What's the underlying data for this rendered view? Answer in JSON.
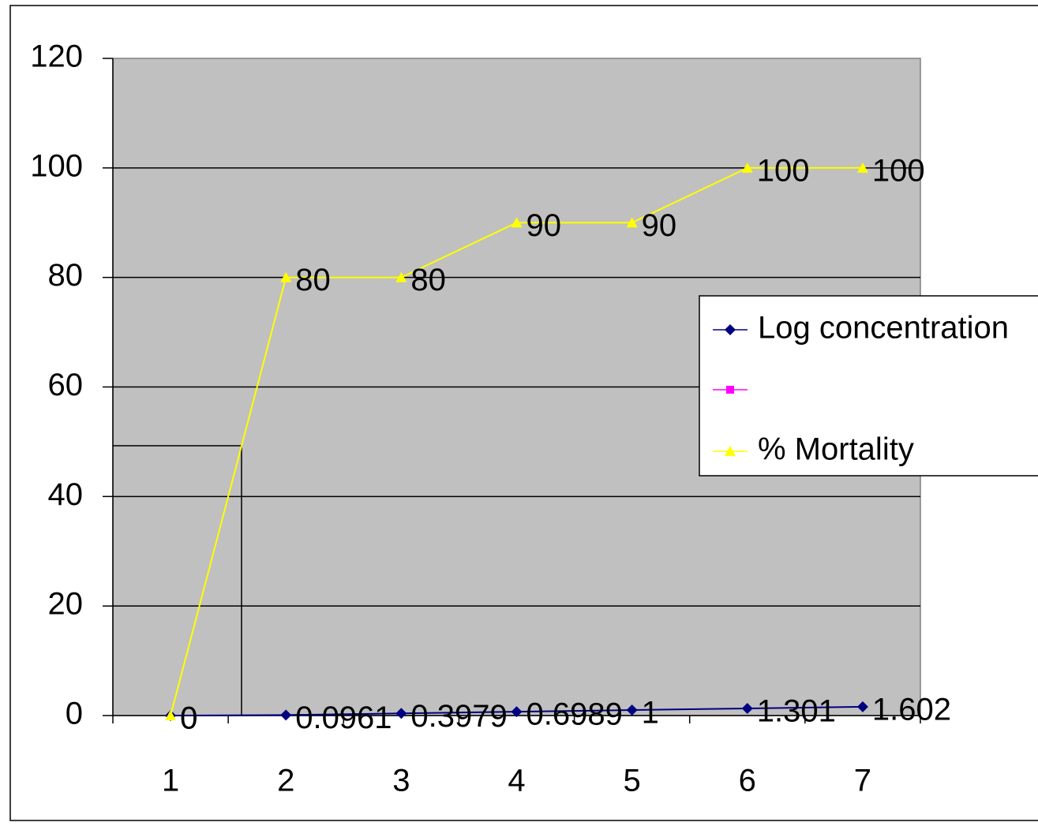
{
  "chart_data": {
    "type": "line",
    "categories": [
      "1",
      "2",
      "3",
      "4",
      "5",
      "6",
      "7"
    ],
    "series": [
      {
        "name": "Log concentration",
        "color": "#000080",
        "marker": "diamond",
        "values": [
          0,
          0.0961,
          0.3979,
          0.6989,
          1,
          1.301,
          1.602
        ]
      },
      {
        "name": "% Mortality",
        "color": "#ffff00",
        "marker": "triangle",
        "values": [
          0,
          80,
          80,
          90,
          90,
          100,
          100
        ]
      }
    ],
    "ylim": [
      0,
      120
    ],
    "yticks": [
      0,
      20,
      40,
      60,
      80,
      100,
      120
    ],
    "grid": true,
    "legend": "right"
  }
}
